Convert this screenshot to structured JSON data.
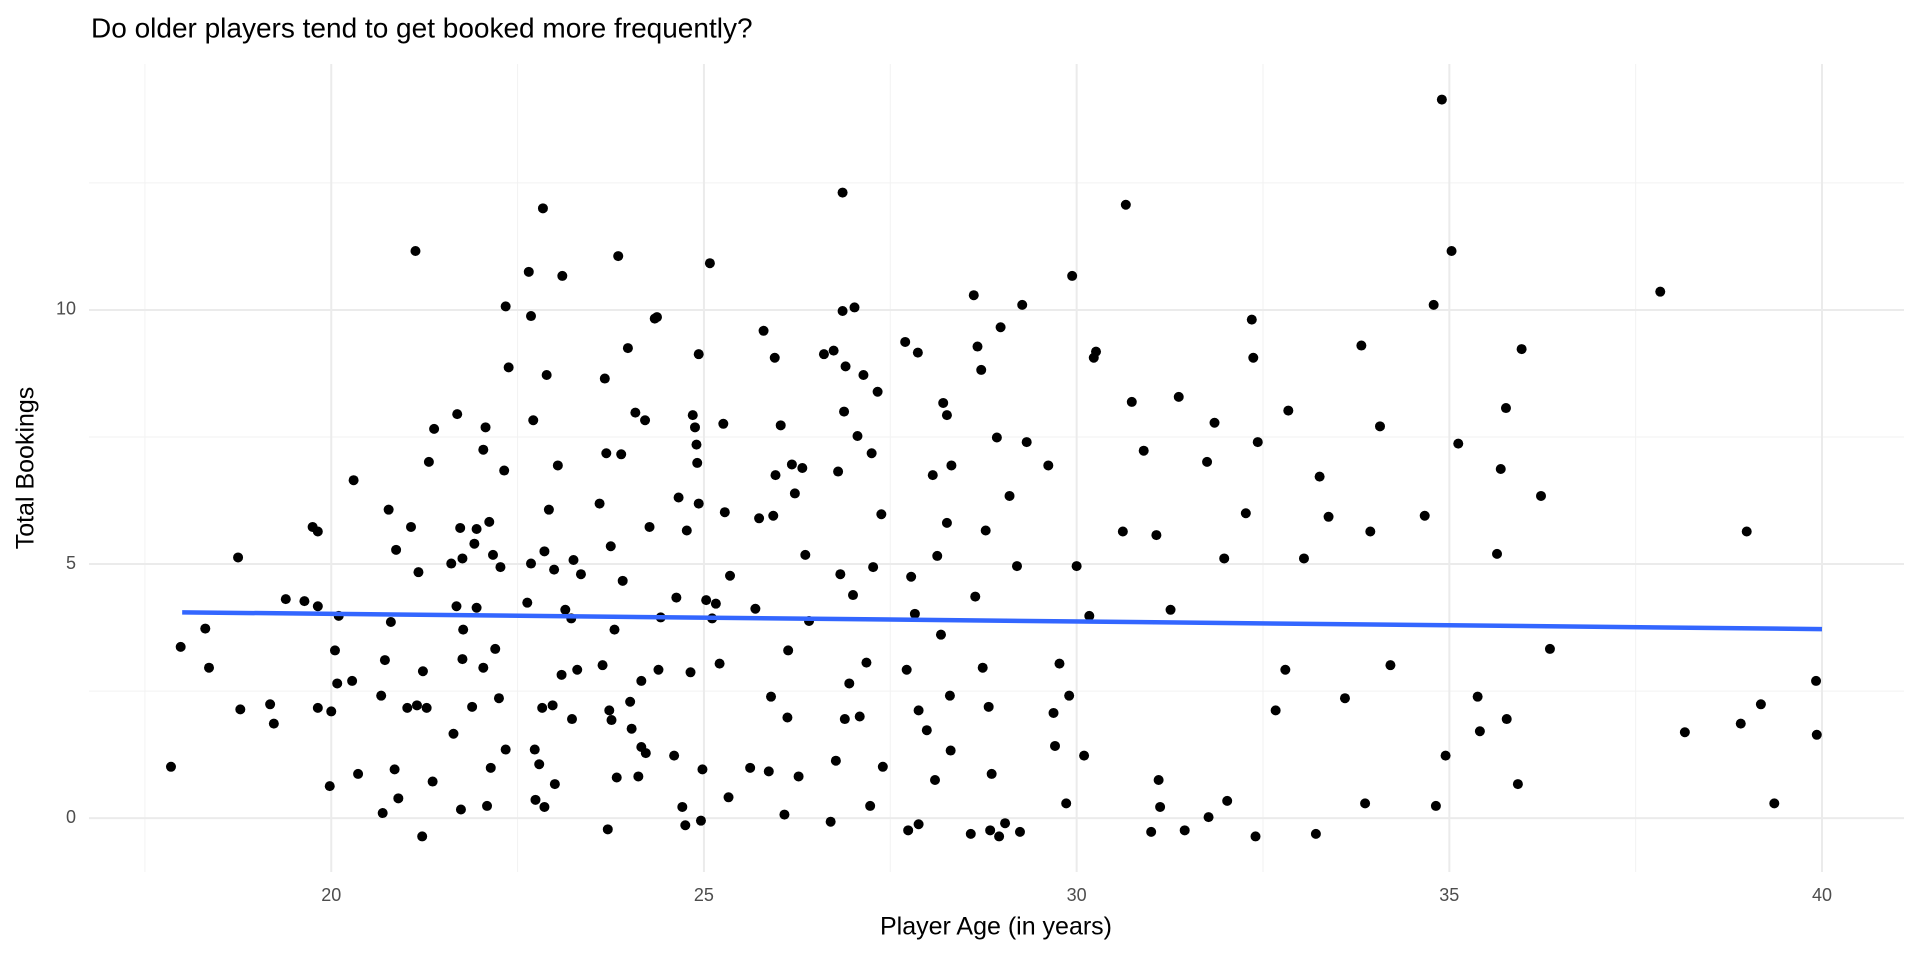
{
  "chart_data": {
    "type": "scatter",
    "title": "Do older players tend to get booked more frequently?",
    "x_label": "Player Age (in years)",
    "y_label": "Total Bookings",
    "xlim": [
      16.75,
      41.1
    ],
    "ylim": [
      -1.06,
      14.84
    ],
    "xticks": [
      20,
      25,
      30,
      35,
      40
    ],
    "yticks": [
      0,
      5,
      10
    ],
    "grid": true,
    "color": "#000000",
    "x": [
      17.85,
      17.98,
      18.31,
      18.36,
      18.75,
      18.78,
      19.18,
      19.23,
      19.39,
      19.64,
      19.75,
      19.82,
      19.82,
      19.82,
      20.0,
      19.98,
      20.05,
      20.08,
      20.28,
      20.3,
      20.36,
      20.1,
      20.67,
      20.69,
      20.72,
      20.77,
      20.8,
      20.85,
      20.87,
      20.9,
      21.02,
      21.07,
      21.13,
      21.15,
      21.17,
      21.22,
      21.23,
      21.28,
      21.31,
      21.36,
      21.38,
      21.61,
      21.64,
      21.68,
      21.69,
      21.73,
      21.74,
      21.76,
      21.76,
      21.77,
      21.89,
      21.92,
      21.95,
      21.95,
      22.04,
      22.04,
      22.07,
      22.09,
      22.12,
      22.14,
      22.17,
      22.2,
      22.25,
      22.27,
      22.32,
      22.34,
      22.34,
      22.38,
      22.63,
      22.65,
      22.68,
      22.68,
      22.71,
      22.73,
      22.74,
      22.79,
      22.83,
      22.84,
      22.86,
      22.86,
      22.89,
      22.92,
      22.97,
      22.99,
      23.0,
      23.04,
      23.09,
      23.1,
      23.14,
      23.22,
      23.23,
      23.25,
      23.3,
      23.35,
      23.6,
      23.64,
      23.67,
      23.69,
      23.71,
      23.73,
      23.75,
      23.76,
      23.8,
      23.83,
      23.85,
      23.89,
      23.91,
      23.98,
      24.01,
      24.03,
      24.08,
      24.12,
      24.16,
      24.16,
      24.21,
      24.22,
      24.27,
      24.34,
      24.37,
      24.39,
      24.42,
      24.6,
      24.63,
      24.66,
      24.71,
      24.75,
      24.77,
      24.82,
      24.85,
      24.88,
      24.9,
      24.91,
      24.93,
      24.93,
      24.96,
      24.98,
      25.03,
      25.08,
      25.11,
      25.16,
      25.21,
      25.26,
      25.28,
      25.33,
      25.35,
      25.62,
      25.69,
      25.74,
      25.8,
      25.87,
      25.9,
      25.93,
      25.95,
      25.96,
      26.03,
      26.08,
      26.12,
      26.13,
      26.18,
      26.22,
      26.27,
      26.32,
      26.36,
      26.41,
      26.61,
      26.7,
      26.74,
      26.77,
      26.8,
      26.83,
      26.86,
      26.86,
      26.88,
      26.89,
      26.9,
      26.95,
      27.0,
      27.02,
      27.06,
      27.09,
      27.14,
      27.18,
      27.23,
      27.25,
      27.27,
      27.33,
      27.38,
      27.4,
      27.7,
      27.72,
      27.74,
      27.78,
      27.83,
      27.87,
      27.88,
      27.88,
      27.99,
      28.07,
      28.1,
      28.13,
      28.18,
      28.21,
      28.26,
      28.26,
      28.32,
      28.3,
      28.31,
      28.58,
      28.62,
      28.64,
      28.67,
      28.72,
      28.74,
      28.78,
      28.82,
      28.84,
      28.86,
      28.93,
      28.96,
      28.98,
      29.04,
      29.1,
      29.2,
      29.24,
      29.27,
      29.33,
      29.62,
      29.69,
      29.71,
      29.77,
      29.86,
      29.9,
      29.94,
      30.0,
      30.1,
      30.17,
      30.23,
      30.26,
      30.66,
      30.62,
      30.74,
      30.9,
      31.0,
      31.07,
      31.1,
      31.12,
      31.26,
      31.37,
      31.45,
      31.75,
      31.77,
      31.85,
      31.98,
      32.02,
      32.27,
      32.35,
      32.37,
      32.4,
      32.43,
      32.67,
      32.8,
      32.84,
      33.05,
      33.21,
      33.26,
      33.38,
      33.6,
      33.82,
      33.87,
      33.94,
      34.07,
      34.21,
      34.67,
      34.79,
      34.82,
      34.9,
      34.95,
      35.03,
      35.12,
      35.38,
      35.41,
      35.64,
      35.69,
      35.76,
      35.77,
      35.92,
      35.97,
      36.23,
      36.35,
      37.83,
      38.16,
      38.91,
      38.99,
      39.18,
      39.36,
      39.92,
      39.93
    ],
    "values": [
      1.01,
      3.37,
      3.73,
      2.96,
      5.13,
      2.14,
      2.24,
      1.86,
      4.31,
      4.27,
      5.73,
      5.64,
      4.17,
      2.17,
      2.1,
      0.63,
      3.3,
      2.65,
      2.7,
      6.65,
      0.87,
      3.98,
      2.41,
      0.1,
      3.11,
      6.07,
      3.86,
      0.96,
      5.28,
      0.39,
      2.17,
      5.73,
      11.16,
      2.22,
      4.84,
      -0.36,
      2.89,
      2.17,
      7.01,
      0.72,
      7.66,
      5.01,
      1.66,
      4.17,
      7.95,
      5.71,
      0.17,
      3.13,
      5.11,
      3.71,
      2.19,
      5.4,
      4.14,
      5.69,
      7.25,
      2.96,
      7.69,
      0.24,
      5.83,
      0.99,
      5.18,
      3.33,
      2.36,
      4.94,
      6.84,
      10.07,
      1.35,
      8.87,
      4.24,
      10.75,
      9.88,
      5.01,
      7.83,
      1.35,
      0.36,
      1.06,
      2.17,
      12.0,
      5.25,
      0.22,
      8.72,
      6.07,
      2.22,
      4.89,
      0.67,
      6.94,
      2.82,
      10.67,
      4.1,
      3.93,
      1.95,
      5.08,
      2.92,
      4.8,
      6.19,
      3.01,
      8.65,
      7.18,
      -0.22,
      2.12,
      5.35,
      1.93,
      3.71,
      0.8,
      11.06,
      7.16,
      4.67,
      9.25,
      2.29,
      1.76,
      7.98,
      0.82,
      1.4,
      2.7,
      7.83,
      1.28,
      5.73,
      9.83,
      9.86,
      2.92,
      3.95,
      1.23,
      4.34,
      6.31,
      0.22,
      -0.14,
      5.66,
      2.87,
      7.93,
      7.69,
      7.35,
      6.99,
      9.13,
      6.19,
      -0.05,
      0.96,
      4.29,
      10.92,
      3.93,
      4.22,
      3.04,
      7.76,
      6.02,
      0.41,
      4.77,
      0.99,
      4.12,
      5.9,
      9.59,
      0.92,
      2.39,
      5.95,
      9.06,
      6.75,
      7.73,
      0.07,
      1.98,
      3.3,
      6.96,
      6.39,
      0.82,
      6.89,
      5.18,
      3.88,
      9.13,
      -0.07,
      9.2,
      1.13,
      6.82,
      4.8,
      12.31,
      9.98,
      8.0,
      1.95,
      8.89,
      2.65,
      4.39,
      10.05,
      7.52,
      2.0,
      8.72,
      3.06,
      0.24,
      7.18,
      4.94,
      8.39,
      5.98,
      1.01,
      9.37,
      2.92,
      -0.24,
      4.75,
      4.02,
      9.16,
      2.12,
      -0.12,
      1.73,
      6.75,
      0.75,
      5.16,
      3.61,
      8.17,
      7.93,
      5.81,
      6.94,
      2.41,
      1.33,
      -0.31,
      10.29,
      4.36,
      9.28,
      8.82,
      2.96,
      5.66,
      2.19,
      -0.24,
      0.87,
      7.49,
      -0.36,
      9.66,
      -0.1,
      6.34,
      4.96,
      -0.27,
      10.1,
      7.4,
      6.94,
      2.07,
      1.42,
      3.04,
      0.29,
      2.41,
      10.67,
      4.96,
      1.23,
      3.98,
      9.06,
      9.18,
      12.07,
      5.64,
      8.19,
      7.23,
      -0.27,
      5.57,
      0.75,
      0.22,
      4.1,
      8.29,
      -0.24,
      7.01,
      0.02,
      7.78,
      5.11,
      0.34,
      6.0,
      9.81,
      9.06,
      -0.36,
      7.4,
      2.12,
      2.92,
      8.02,
      5.11,
      -0.31,
      6.72,
      5.93,
      2.36,
      9.3,
      0.29,
      5.64,
      7.71,
      3.01,
      5.95,
      10.1,
      0.24,
      14.14,
      1.23,
      11.16,
      7.37,
      2.39,
      1.71,
      5.2,
      6.87,
      8.07,
      1.95,
      0.67,
      9.23,
      6.34,
      3.33,
      10.36,
      1.69,
      1.86,
      5.64,
      2.24,
      0.29,
      2.7,
      1.64
    ],
    "fit": {
      "x": [
        18,
        40
      ],
      "values": [
        4.05,
        3.72
      ],
      "color": "#3366ff"
    }
  }
}
